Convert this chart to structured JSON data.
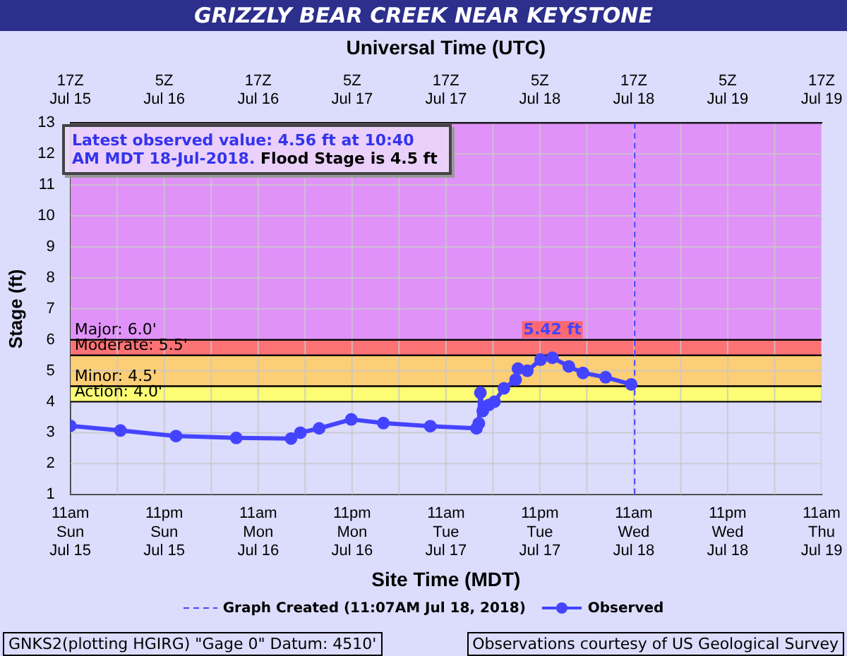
{
  "chart_data": {
    "type": "line",
    "title": "GRIZZLY BEAR CREEK NEAR KEYSTONE",
    "xlabel": "Site Time (MDT)",
    "x2label": "Universal Time (UTC)",
    "ylabel": "Stage (ft)",
    "x": [
      "2018-07-15T11:00",
      "2018-07-15T17:24",
      "2018-07-16T00:30",
      "2018-07-16T08:12",
      "2018-07-16T15:12",
      "2018-07-16T16:24",
      "2018-07-16T18:48",
      "2018-07-16T22:54",
      "2018-07-17T03:00",
      "2018-07-17T09:00",
      "2018-07-17T14:54",
      "2018-07-17T15:12",
      "2018-07-17T15:24",
      "2018-07-17T15:42",
      "2018-07-17T16:30",
      "2018-07-17T17:12",
      "2018-07-17T18:24",
      "2018-07-17T19:54",
      "2018-07-17T20:12",
      "2018-07-17T21:24",
      "2018-07-17T23:06",
      "2018-07-18T00:36",
      "2018-07-18T02:42",
      "2018-07-18T04:30",
      "2018-07-18T07:24",
      "2018-07-18T10:40"
    ],
    "series": [
      {
        "name": "Observed",
        "color": "#4444ff",
        "values": [
          3.22,
          3.07,
          2.89,
          2.83,
          2.81,
          3.0,
          3.14,
          3.43,
          3.31,
          3.21,
          3.14,
          3.3,
          4.29,
          3.7,
          3.9,
          4.0,
          4.43,
          4.71,
          5.07,
          5.0,
          5.36,
          5.42,
          5.14,
          4.93,
          4.79,
          4.56
        ]
      }
    ],
    "xlim": [
      "2018-07-15T11:00",
      "2018-07-19T11:00"
    ],
    "xticks": [
      {
        "value": "2018-07-15T11:00",
        "label": "11am\nSun\nJul 15"
      },
      {
        "value": "2018-07-15T17:00",
        "label": null
      },
      {
        "value": "2018-07-15T23:00",
        "label": "11pm\nSun\nJul 15"
      },
      {
        "value": "2018-07-16T05:00",
        "label": null
      },
      {
        "value": "2018-07-16T11:00",
        "label": "11am\nMon\nJul 16"
      },
      {
        "value": "2018-07-16T17:00",
        "label": null
      },
      {
        "value": "2018-07-16T23:00",
        "label": "11pm\nMon\nJul 16"
      },
      {
        "value": "2018-07-17T05:00",
        "label": null
      },
      {
        "value": "2018-07-17T11:00",
        "label": "11am\nTue\nJul 17"
      },
      {
        "value": "2018-07-17T17:00",
        "label": null
      },
      {
        "value": "2018-07-17T23:00",
        "label": "11pm\nTue\nJul 17"
      },
      {
        "value": "2018-07-18T05:00",
        "label": null
      },
      {
        "value": "2018-07-18T11:00",
        "label": "11am\nWed\nJul 18"
      },
      {
        "value": "2018-07-18T17:00",
        "label": null
      },
      {
        "value": "2018-07-18T23:00",
        "label": "11pm\nWed\nJul 18"
      },
      {
        "value": "2018-07-19T05:00",
        "label": null
      },
      {
        "value": "2018-07-19T11:00",
        "label": "11am\nThu\nJul 19"
      }
    ],
    "x2lim": [
      "2018-07-15T11:00",
      "2018-07-19T11:00"
    ],
    "x2ticks": [
      {
        "value": "2018-07-15T11:00",
        "label": "17Z\nJul 15"
      },
      {
        "value": "2018-07-15T17:00",
        "label": null
      },
      {
        "value": "2018-07-15T23:00",
        "label": "5Z\nJul 16"
      },
      {
        "value": "2018-07-16T05:00",
        "label": null
      },
      {
        "value": "2018-07-16T11:00",
        "label": "17Z\nJul 16"
      },
      {
        "value": "2018-07-16T17:00",
        "label": null
      },
      {
        "value": "2018-07-16T23:00",
        "label": "5Z\nJul 17"
      },
      {
        "value": "2018-07-17T05:00",
        "label": null
      },
      {
        "value": "2018-07-17T11:00",
        "label": "17Z\nJul 17"
      },
      {
        "value": "2018-07-17T17:00",
        "label": null
      },
      {
        "value": "2018-07-17T23:00",
        "label": "5Z\nJul 18"
      },
      {
        "value": "2018-07-18T05:00",
        "label": null
      },
      {
        "value": "2018-07-18T11:00",
        "label": "17Z\nJul 18"
      },
      {
        "value": "2018-07-18T17:00",
        "label": null
      },
      {
        "value": "2018-07-18T23:00",
        "label": "5Z\nJul 19"
      },
      {
        "value": "2018-07-19T05:00",
        "label": null
      },
      {
        "value": "2018-07-19T11:00",
        "label": "17Z\nJul 19"
      }
    ],
    "ylim": [
      1,
      13
    ],
    "yticks": [
      1,
      2,
      3,
      4,
      5,
      6,
      7,
      8,
      9,
      10,
      11,
      12,
      13
    ],
    "bands": [
      {
        "axis": "y",
        "from": 4.0,
        "to": 4.5,
        "label": "Action: 4.0'",
        "color": "#ffff66"
      },
      {
        "axis": "y",
        "from": 4.5,
        "to": 5.5,
        "label": "Minor: 4.5'",
        "color": "#ffcc66"
      },
      {
        "axis": "y",
        "from": 5.5,
        "to": 6.0,
        "label": "Moderate: 5.5'",
        "color": "#ff6666"
      },
      {
        "axis": "y",
        "from": 6.0,
        "to": 13,
        "label": "Major: 6.0'",
        "color": "#e08af8"
      }
    ],
    "ref_lines": [
      {
        "axis": "x",
        "value": "2018-07-18T11:07",
        "label": "Graph Created (11:07AM Jul 18, 2018)",
        "color": "#4444ff",
        "line_style": "dashed"
      }
    ],
    "annotations": [
      {
        "text": "5.42 ft",
        "x": "2018-07-18T00:36",
        "y": 5.42
      },
      "Latest observed value: 4.56 ft at 10:40 AM MDT 18-Jul-2018.",
      "Flood Stage is 4.5 ft",
      "GNKS2(plotting HGIRG) \"Gage 0\" Datum: 4510'",
      "Observations courtesy of US Geological Survey"
    ],
    "grid": true,
    "legend": "bottom",
    "marker": "circle",
    "line_style": "solid"
  }
}
